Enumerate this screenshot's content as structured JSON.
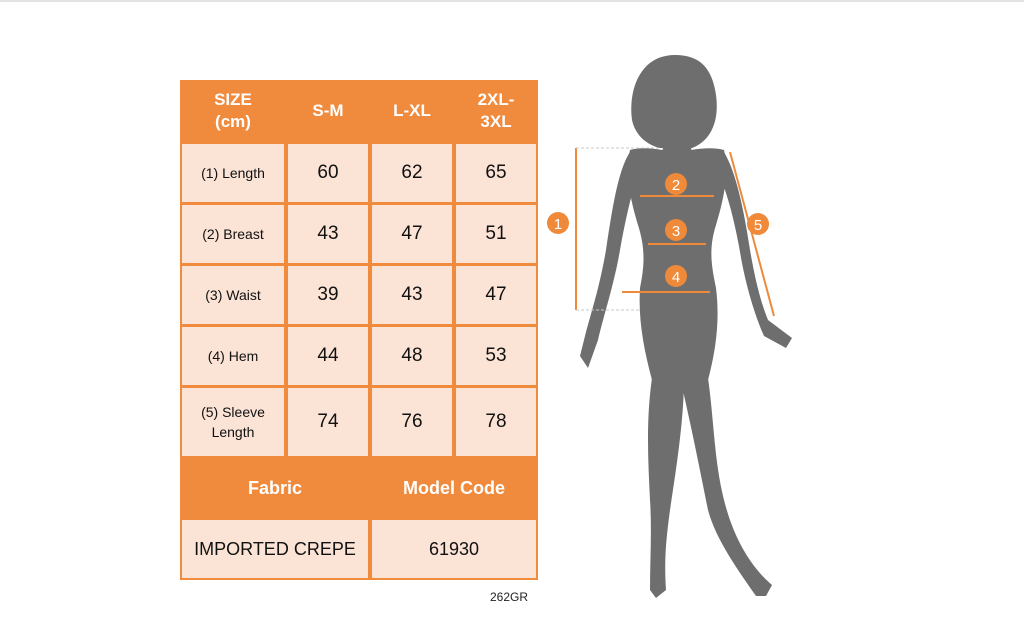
{
  "table": {
    "header": {
      "size_label": "SIZE\n(cm)",
      "sizes": [
        "S-M",
        "L-XL",
        "2XL-\n3XL"
      ]
    },
    "rows": [
      {
        "label": "(1) Length",
        "values": [
          "60",
          "62",
          "65"
        ]
      },
      {
        "label": "(2) Breast",
        "values": [
          "43",
          "47",
          "51"
        ]
      },
      {
        "label": "(3) Waist",
        "values": [
          "39",
          "43",
          "47"
        ]
      },
      {
        "label": "(4) Hem",
        "values": [
          "44",
          "48",
          "53"
        ]
      },
      {
        "label": "(5) Sleeve\nLength",
        "values": [
          "74",
          "76",
          "78"
        ]
      }
    ],
    "fabric_header": "Fabric",
    "model_header": "Model Code",
    "fabric_value": "IMPORTED CREPE",
    "model_value": "61930"
  },
  "footer_code": "262GR",
  "figure": {
    "markers": [
      "1",
      "2",
      "3",
      "4",
      "5"
    ],
    "accent_color": "#ee8a3a",
    "silhouette_color": "#6e6e6e"
  }
}
